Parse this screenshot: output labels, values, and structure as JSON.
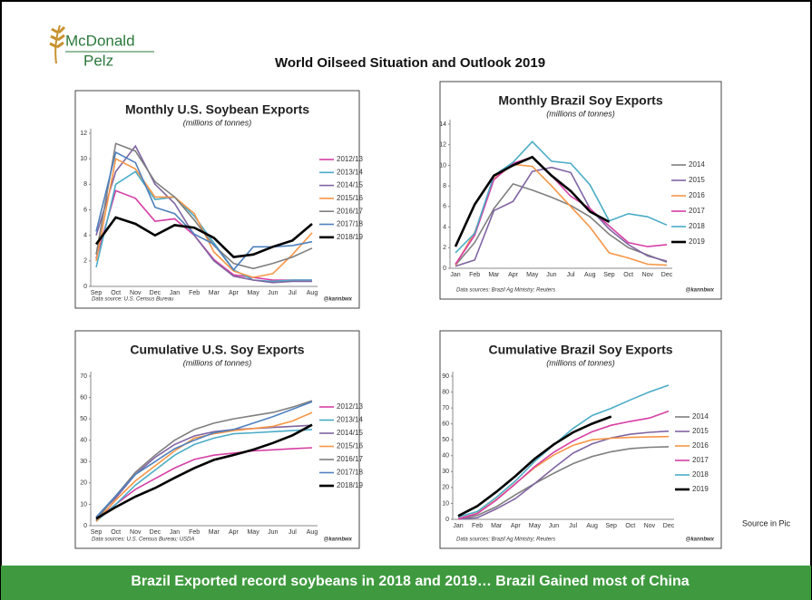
{
  "logo": {
    "line1": "McDonald",
    "line2": "Pelz"
  },
  "title": "World Oilseed Situation and Outlook  2019",
  "note": "Source in Pic",
  "footer": "Brazil Exported record soybeans in 2018 and 2019… Brazil Gained most of China",
  "chart_data": [
    {
      "type": "line",
      "title": "Monthly U.S. Soybean Exports",
      "subtitle": "(millions of tonnes)",
      "source": "Data source: U.S. Census Bureau",
      "credit": "@kannbwx",
      "categories": [
        "Sep",
        "Oct",
        "Nov",
        "Dec",
        "Jan",
        "Feb",
        "Mar",
        "Apr",
        "May",
        "Jun",
        "Jul",
        "Aug"
      ],
      "ylim": [
        0,
        12
      ],
      "yticks": [
        0,
        2,
        4,
        6,
        8,
        10,
        12
      ],
      "grid": false,
      "legend": "right",
      "series": [
        {
          "name": "2012/13",
          "color": "#d63fa5",
          "values": [
            2.2,
            7.5,
            6.9,
            5.1,
            5.3,
            4.0,
            2.1,
            0.9,
            0.7,
            0.5,
            0.5,
            0.5
          ]
        },
        {
          "name": "2013/14",
          "color": "#4bacc6",
          "values": [
            1.5,
            8.0,
            9.0,
            6.8,
            7.0,
            5.5,
            3.4,
            1.3,
            0.5,
            0.4,
            0.5,
            0.5
          ]
        },
        {
          "name": "2014/15",
          "color": "#8064a2",
          "values": [
            4.0,
            9.0,
            11.0,
            8.0,
            6.5,
            4.0,
            2.0,
            0.8,
            0.5,
            0.3,
            0.4,
            0.4
          ]
        },
        {
          "name": "2015/16",
          "color": "#f79646",
          "values": [
            2.0,
            10.0,
            9.2,
            7.0,
            7.0,
            5.7,
            2.7,
            1.2,
            0.7,
            1.0,
            2.5,
            4.2
          ]
        },
        {
          "name": "2016/17",
          "color": "#7f7f7f",
          "values": [
            2.5,
            11.2,
            10.6,
            8.2,
            7.0,
            5.2,
            3.2,
            1.8,
            1.4,
            1.8,
            2.3,
            3.0
          ]
        },
        {
          "name": "2017/18",
          "color": "#4f81bd",
          "values": [
            4.3,
            10.5,
            9.7,
            6.2,
            5.7,
            4.1,
            3.3,
            1.3,
            3.1,
            3.1,
            3.2,
            3.5
          ]
        },
        {
          "name": "2018/19",
          "color": "#000000",
          "values": [
            3.3,
            5.4,
            4.9,
            4.0,
            4.8,
            4.6,
            3.8,
            2.3,
            2.5,
            3.1,
            3.6,
            4.9
          ]
        }
      ]
    },
    {
      "type": "line",
      "title": "Monthly Brazil Soy Exports",
      "subtitle": "(millions of tonnes)",
      "source": "Data sources: Brazil Ag Ministry; Reuters",
      "credit": "@kannbwx",
      "categories": [
        "Jan",
        "Feb",
        "Mar",
        "Apr",
        "May",
        "Jun",
        "Jul",
        "Aug",
        "Sep",
        "Oct",
        "Nov",
        "Dec"
      ],
      "ylim": [
        0,
        14
      ],
      "yticks": [
        0,
        2,
        4,
        6,
        8,
        10,
        12,
        14
      ],
      "grid": false,
      "legend": "right",
      "series": [
        {
          "name": "2014",
          "color": "#7f7f7f",
          "values": [
            0.3,
            2.5,
            5.8,
            8.2,
            7.6,
            6.9,
            6.1,
            5.0,
            3.3,
            2.0,
            1.3,
            0.6
          ]
        },
        {
          "name": "2015",
          "color": "#8064a2",
          "values": [
            0.2,
            0.8,
            5.6,
            6.5,
            9.4,
            9.8,
            9.3,
            5.8,
            3.8,
            2.3,
            1.2,
            0.7
          ]
        },
        {
          "name": "2016",
          "color": "#f79646",
          "values": [
            0.3,
            3.5,
            8.7,
            10.1,
            9.9,
            8.0,
            6.0,
            4.0,
            1.5,
            1.0,
            0.4,
            0.3
          ]
        },
        {
          "name": "2017",
          "color": "#d63fa5",
          "values": [
            0.4,
            3.2,
            8.6,
            10.2,
            10.8,
            9.0,
            7.0,
            5.8,
            4.1,
            2.5,
            2.1,
            2.3
          ]
        },
        {
          "name": "2018",
          "color": "#4bacc6",
          "values": [
            1.5,
            3.4,
            9.0,
            10.3,
            12.3,
            10.4,
            10.2,
            8.1,
            4.6,
            5.3,
            5.0,
            4.2
          ]
        },
        {
          "name": "2019",
          "color": "#000000",
          "values": [
            2.1,
            6.2,
            9.0,
            10.0,
            10.8,
            9.0,
            7.5,
            5.5,
            4.5,
            null,
            null,
            null
          ]
        }
      ]
    },
    {
      "type": "line",
      "title": "Cumulative U.S. Soy Exports",
      "subtitle": "(millions of tonnes)",
      "source": "Data sources: U.S. Census Bureau; USDA",
      "credit": "@kannbwx",
      "categories": [
        "Sep",
        "Oct",
        "Nov",
        "Dec",
        "Jan",
        "Feb",
        "Mar",
        "Apr",
        "May",
        "Jun",
        "Jul",
        "Aug"
      ],
      "ylim": [
        0,
        70
      ],
      "yticks": [
        0,
        10,
        20,
        30,
        40,
        50,
        60,
        70
      ],
      "grid": false,
      "legend": "right",
      "series": [
        {
          "name": "2012/13",
          "color": "#d63fa5",
          "values": [
            2.5,
            10,
            17,
            22,
            27,
            31,
            33,
            34,
            35,
            35.5,
            36,
            36.5
          ]
        },
        {
          "name": "2013/14",
          "color": "#4bacc6",
          "values": [
            2,
            10,
            19,
            26,
            33,
            38,
            41,
            43,
            43.5,
            44,
            44.5,
            45
          ]
        },
        {
          "name": "2014/15",
          "color": "#8064a2",
          "values": [
            4,
            13,
            24,
            32,
            38,
            42,
            44,
            45,
            45.5,
            46,
            46.5,
            47
          ]
        },
        {
          "name": "2015/16",
          "color": "#f79646",
          "values": [
            2,
            12,
            21,
            28,
            35,
            41,
            43,
            44.5,
            45.5,
            46.5,
            49,
            53
          ]
        },
        {
          "name": "2016/17",
          "color": "#7f7f7f",
          "values": [
            2.5,
            14,
            25,
            33,
            40,
            45,
            48,
            50,
            51.5,
            53,
            55.5,
            58.5
          ]
        },
        {
          "name": "2017/18",
          "color": "#4f81bd",
          "values": [
            4,
            14,
            24,
            30,
            36,
            40,
            43.5,
            45,
            48,
            51,
            54.5,
            58
          ]
        },
        {
          "name": "2018/19",
          "color": "#000000",
          "values": [
            3.3,
            8.7,
            13.6,
            17.6,
            22.4,
            27,
            30.8,
            33.1,
            35.6,
            38.7,
            42.3,
            47.2
          ]
        }
      ]
    },
    {
      "type": "line",
      "title": "Cumulative Brazil Soy Exports",
      "subtitle": "(millions of tonnes)",
      "source": "Data sources: Brazil Ag Ministry; Reuters",
      "credit": "@kannbwx",
      "categories": [
        "Jan",
        "Feb",
        "Mar",
        "Apr",
        "May",
        "Jun",
        "Jul",
        "Aug",
        "Sep",
        "Oct",
        "Nov",
        "Dec"
      ],
      "ylim": [
        0,
        90
      ],
      "yticks": [
        0,
        10,
        20,
        30,
        40,
        50,
        60,
        70,
        80,
        90
      ],
      "grid": false,
      "legend": "right",
      "series": [
        {
          "name": "2014",
          "color": "#7f7f7f",
          "values": [
            0.3,
            2.5,
            8,
            15.5,
            22.5,
            29,
            35,
            39.5,
            42.5,
            44.5,
            45.3,
            45.6
          ]
        },
        {
          "name": "2015",
          "color": "#8064a2",
          "values": [
            0.2,
            1,
            6.6,
            13.1,
            22.5,
            32.3,
            41.6,
            47.4,
            51.2,
            53.5,
            54.7,
            55.4
          ]
        },
        {
          "name": "2016",
          "color": "#f79646",
          "values": [
            0.3,
            3.8,
            12.5,
            22.6,
            32.5,
            40.5,
            46.5,
            50,
            51,
            51.5,
            51.8,
            52
          ]
        },
        {
          "name": "2017",
          "color": "#d63fa5",
          "values": [
            0.4,
            3.6,
            12.2,
            22.4,
            33.2,
            42.2,
            49.2,
            55,
            59.1,
            61.6,
            63.7,
            68
          ]
        },
        {
          "name": "2018",
          "color": "#4bacc6",
          "values": [
            1.5,
            4.9,
            13.9,
            24.2,
            36.5,
            46.9,
            57.1,
            65.2,
            69.8,
            75.1,
            80.1,
            84.3
          ]
        },
        {
          "name": "2019",
          "color": "#000000",
          "values": [
            2.1,
            8.3,
            17.3,
            27.3,
            38.1,
            47.1,
            54.6,
            60.1,
            64.6,
            null,
            null,
            null
          ]
        }
      ]
    }
  ]
}
